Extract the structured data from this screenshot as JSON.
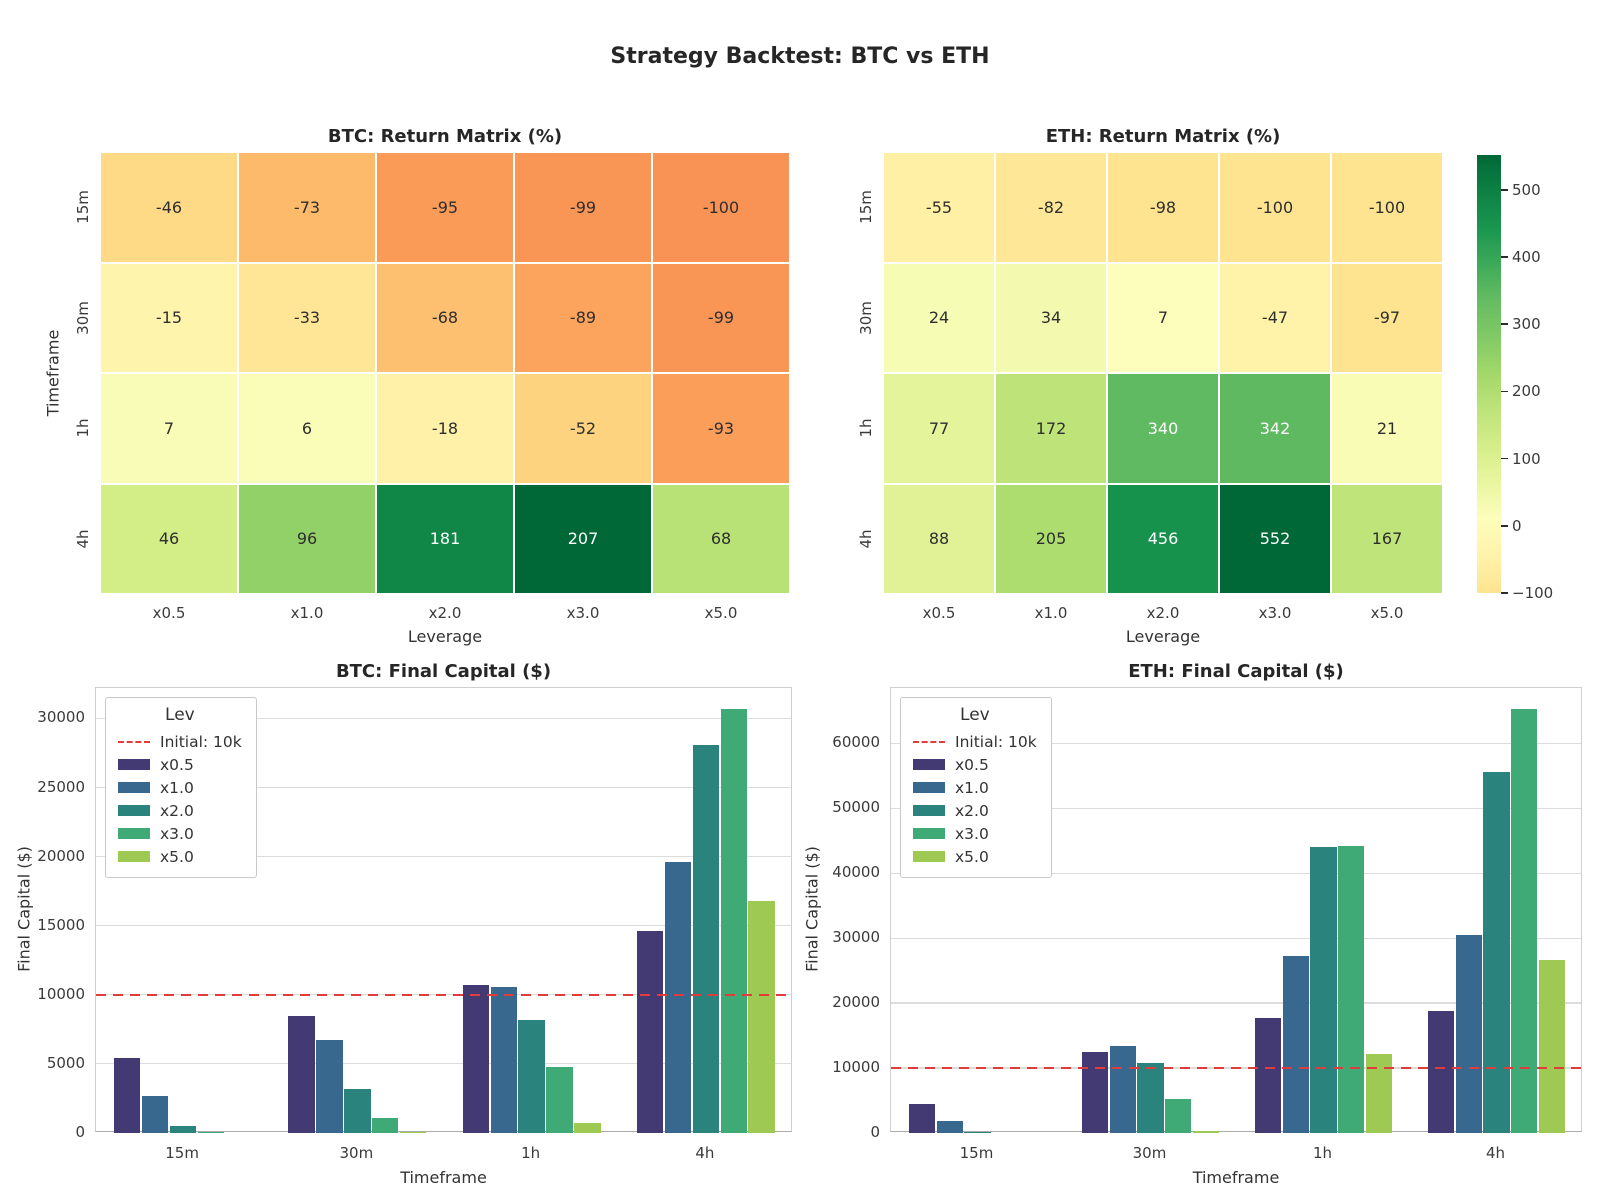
{
  "title": "Strategy Backtest: BTC vs ETH",
  "palette": {
    "rdylgn_anchors": [
      "#a50026",
      "#d73027",
      "#f46d43",
      "#fdae61",
      "#fee08b",
      "#ffffbf",
      "#d9ef8b",
      "#a6d96a",
      "#66bd63",
      "#1a9850",
      "#006837"
    ],
    "series": {
      "x0.5": "#433a73",
      "x1.0": "#38688e",
      "x2.0": "#2b837e",
      "x3.0": "#40aa76",
      "x5.0": "#9ec952"
    },
    "initial_line": "#e23b3b",
    "grid": "#dcdcdc",
    "annot_dark": "#2e2e2e",
    "annot_light": "#ffffff"
  },
  "chart_data": [
    {
      "id": "btc_return_matrix",
      "type": "heatmap",
      "title": "BTC: Return Matrix (%)",
      "xlabel": "Leverage",
      "ylabel": "Timeframe",
      "columns": [
        "x0.5",
        "x1.0",
        "x2.0",
        "x3.0",
        "x5.0"
      ],
      "rows": [
        "15m",
        "30m",
        "1h",
        "4h"
      ],
      "values": [
        [
          -46,
          -73,
          -95,
          -99,
          -100
        ],
        [
          -15,
          -33,
          -68,
          -89,
          -99
        ],
        [
          7,
          6,
          -18,
          -52,
          -93
        ],
        [
          46,
          96,
          181,
          207,
          68
        ]
      ],
      "cmap": "RdYlGn",
      "center": 0
    },
    {
      "id": "eth_return_matrix",
      "type": "heatmap",
      "title": "ETH: Return Matrix (%)",
      "xlabel": "Leverage",
      "columns": [
        "x0.5",
        "x1.0",
        "x2.0",
        "x3.0",
        "x5.0"
      ],
      "rows": [
        "15m",
        "30m",
        "1h",
        "4h"
      ],
      "values": [
        [
          -55,
          -82,
          -98,
          -100,
          -100
        ],
        [
          24,
          34,
          7,
          -47,
          -97
        ],
        [
          77,
          172,
          340,
          342,
          21
        ],
        [
          88,
          205,
          456,
          552,
          167
        ]
      ],
      "cmap": "RdYlGn",
      "center": 0,
      "colorbar": {
        "range": [
          -100,
          552
        ],
        "tick_values": [
          500,
          400,
          300,
          200,
          100,
          0,
          -100
        ],
        "tick_labels": [
          "500",
          "400",
          "300",
          "200",
          "100",
          "0",
          "−100"
        ]
      }
    },
    {
      "id": "btc_final_capital",
      "type": "bar",
      "title": "BTC: Final Capital ($)",
      "xlabel": "Timeframe",
      "ylabel": "Final Capital ($)",
      "categories": [
        "15m",
        "30m",
        "1h",
        "4h"
      ],
      "series": [
        {
          "name": "x0.5",
          "values": [
            5400,
            8500,
            10700,
            14600
          ]
        },
        {
          "name": "x1.0",
          "values": [
            2700,
            6700,
            10600,
            19600
          ]
        },
        {
          "name": "x2.0",
          "values": [
            500,
            3200,
            8200,
            28100
          ]
        },
        {
          "name": "x3.0",
          "values": [
            100,
            1100,
            4800,
            30700
          ]
        },
        {
          "name": "x5.0",
          "values": [
            0,
            100,
            700,
            16800
          ]
        }
      ],
      "y_ticks": [
        0,
        5000,
        10000,
        15000,
        20000,
        25000,
        30000
      ],
      "ylim": [
        0,
        32200
      ],
      "grid": true,
      "legend": {
        "title": "Lev",
        "position": "upper left",
        "initial_label": "Initial: 10k",
        "initial_value": 10000
      }
    },
    {
      "id": "eth_final_capital",
      "type": "bar",
      "title": "ETH: Final Capital ($)",
      "xlabel": "Timeframe",
      "ylabel": "Final Capital ($)",
      "categories": [
        "15m",
        "30m",
        "1h",
        "4h"
      ],
      "series": [
        {
          "name": "x0.5",
          "values": [
            4500,
            12400,
            17700,
            18800
          ]
        },
        {
          "name": "x1.0",
          "values": [
            1800,
            13400,
            27200,
            30500
          ]
        },
        {
          "name": "x2.0",
          "values": [
            200,
            10700,
            44000,
            55600
          ]
        },
        {
          "name": "x3.0",
          "values": [
            0,
            5300,
            44200,
            65200
          ]
        },
        {
          "name": "x5.0",
          "values": [
            0,
            300,
            12100,
            26700
          ]
        }
      ],
      "y_ticks": [
        0,
        10000,
        20000,
        30000,
        40000,
        50000,
        60000
      ],
      "ylim": [
        0,
        68500
      ],
      "grid": true,
      "legend": {
        "title": "Lev",
        "position": "upper left",
        "initial_label": "Initial: 10k",
        "initial_value": 10000
      }
    }
  ]
}
